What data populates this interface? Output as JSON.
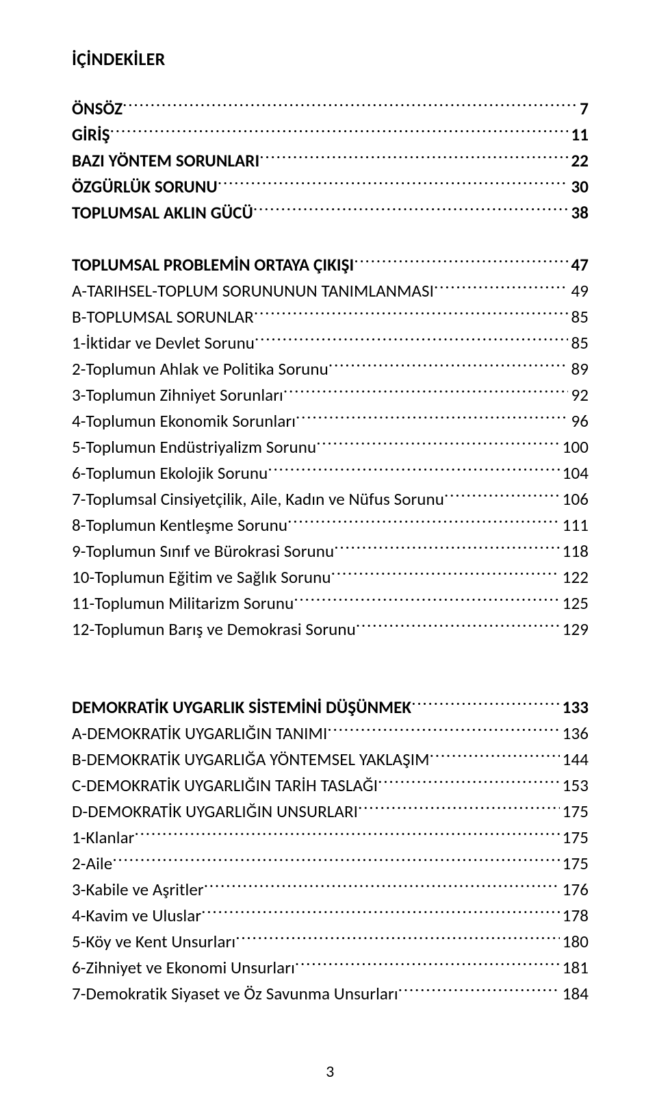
{
  "doc": {
    "title": "İÇİNDEKİLER",
    "page_number": "3",
    "colors": {
      "bg": "#ffffff",
      "text": "#000000"
    },
    "font": {
      "title_size_pt": 19,
      "row_size_pt": 18
    }
  },
  "rows": [
    {
      "label": "ÖNSÖZ",
      "page": "7",
      "bold": true
    },
    {
      "label": "GİRİŞ",
      "page": "11",
      "bold": true
    },
    {
      "label": "BAZI YÖNTEM SORUNLARI",
      "page": "22",
      "bold": true
    },
    {
      "label": "ÖZGÜRLÜK SORUNU",
      "page": "30",
      "bold": true
    },
    {
      "label": "TOPLUMSAL AKLIN GÜCÜ",
      "page": "38",
      "bold": true
    },
    {
      "gap": 1
    },
    {
      "label": "TOPLUMSAL PROBLEMİN ORTAYA ÇIKIŞI",
      "page": "47",
      "bold": true
    },
    {
      "label": "A-TARIHSEL-TOPLUM SORUNUNUN TANIMLANMASI",
      "page": "49"
    },
    {
      "label": "B-TOPLUMSAL SORUNLAR",
      "page": "85"
    },
    {
      "label": "1-İktidar ve Devlet Sorunu",
      "page": "85"
    },
    {
      "label": "2-Toplumun Ahlak ve Politika Sorunu",
      "page": "89"
    },
    {
      "label": "3-Toplumun Zihniyet Sorunları",
      "page": "92"
    },
    {
      "label": "4-Toplumun Ekonomik Sorunları",
      "page": "96"
    },
    {
      "label": "5-Toplumun Endüstriyalizm Sorunu",
      "page": "100"
    },
    {
      "label": "6-Toplumun Ekolojik Sorunu",
      "page": "104"
    },
    {
      "label": "7-Toplumsal Cinsiyetçilik, Aile, Kadın ve Nüfus Sorunu",
      "page": "106"
    },
    {
      "label": "8-Toplumun Kentleşme Sorunu",
      "page": "111"
    },
    {
      "label": "9-Toplumun Sınıf ve Bürokrasi Sorunu",
      "page": "118"
    },
    {
      "label": "10-Toplumun Eğitim ve Sağlık Sorunu",
      "page": "122"
    },
    {
      "label": "11-Toplumun Militarizm Sorunu",
      "page": "125"
    },
    {
      "label": "12-Toplumun Barış ve Demokrasi Sorunu",
      "page": "129"
    },
    {
      "gap": 2
    },
    {
      "label": "DEMOKRATİK UYGARLIK SİSTEMİNİ DÜŞÜNMEK",
      "page": "133",
      "bold": true
    },
    {
      "label": "A-DEMOKRATİK UYGARLIĞIN TANIMI",
      "page": "136"
    },
    {
      "label": "B-DEMOKRATİK UYGARLIĞA YÖNTEMSEL YAKLAŞIM",
      "page": "144"
    },
    {
      "label": "C-DEMOKRATİK UYGARLIĞIN TARİH TASLAĞI",
      "page": "153"
    },
    {
      "label": "D-DEMOKRATİK UYGARLIĞIN UNSURLARI",
      "page": "175"
    },
    {
      "label": "1-Klanlar",
      "page": "175"
    },
    {
      "label": "2-Aile",
      "page": "175"
    },
    {
      "label": "3-Kabile ve Aşritler",
      "page": "176"
    },
    {
      "label": "4-Kavim ve Uluslar",
      "page": "178"
    },
    {
      "label": "5-Köy ve Kent Unsurları",
      "page": "180"
    },
    {
      "label": "6-Zihniyet ve Ekonomi Unsurları",
      "page": "181"
    },
    {
      "label": "7-Demokratik Siyaset ve Öz Savunma Unsurları",
      "page": "184"
    }
  ]
}
